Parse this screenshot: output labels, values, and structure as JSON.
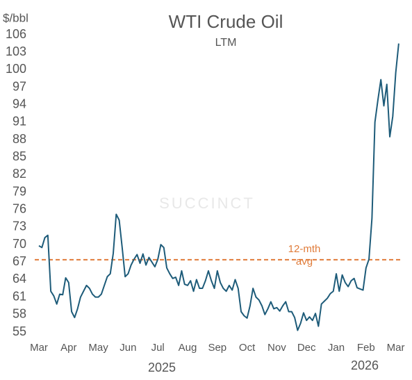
{
  "chart_data": {
    "type": "line",
    "title": "WTI Crude Oil",
    "subtitle": "LTM",
    "y_axis_label": "$/bbl",
    "watermark": "SUCCINCT",
    "year_labels": [
      "2025",
      "2026"
    ],
    "categories": [
      "Mar",
      null,
      null,
      null,
      null,
      null,
      null,
      null,
      null,
      null,
      "Apr",
      null,
      null,
      null,
      null,
      null,
      null,
      null,
      null,
      null,
      "May",
      null,
      null,
      null,
      null,
      null,
      null,
      null,
      null,
      null,
      "Jun",
      null,
      null,
      null,
      null,
      null,
      null,
      null,
      null,
      null,
      "Jul",
      null,
      null,
      null,
      null,
      null,
      null,
      null,
      null,
      null,
      "Aug",
      null,
      null,
      null,
      null,
      null,
      null,
      null,
      null,
      null,
      "Sep",
      null,
      null,
      null,
      null,
      null,
      null,
      null,
      null,
      null,
      "Oct",
      null,
      null,
      null,
      null,
      null,
      null,
      null,
      null,
      null,
      "Nov",
      null,
      null,
      null,
      null,
      null,
      null,
      null,
      null,
      null,
      "Dec",
      null,
      null,
      null,
      null,
      null,
      null,
      null,
      null,
      null,
      "Jan",
      null,
      null,
      null,
      null,
      null,
      null,
      null,
      null,
      null,
      "Feb",
      null,
      null,
      null,
      null,
      null,
      null,
      null,
      null,
      null,
      "Mar",
      null
    ],
    "series": [
      {
        "name": "WTI",
        "color": "#1d5b79",
        "values": [
          69.8,
          69.5,
          71.2,
          71.6,
          62.0,
          61.2,
          59.8,
          61.5,
          61.4,
          64.3,
          63.5,
          58.5,
          57.5,
          59.0,
          61.0,
          62.0,
          63.0,
          62.5,
          61.5,
          61.0,
          61.0,
          61.5,
          63.0,
          64.5,
          65.0,
          68.5,
          75.2,
          74.2,
          69.5,
          64.5,
          65.0,
          66.5,
          67.5,
          68.3,
          66.8,
          68.4,
          66.5,
          67.8,
          67.0,
          66.2,
          67.5,
          70.0,
          69.5,
          66.0,
          65.0,
          64.2,
          64.4,
          63.0,
          65.5,
          63.2,
          63.0,
          63.8,
          62.0,
          64.0,
          62.5,
          62.5,
          63.8,
          65.5,
          63.8,
          62.5,
          65.5,
          63.5,
          62.5,
          62.0,
          63.0,
          62.2,
          64.0,
          62.5,
          58.5,
          57.8,
          57.4,
          59.5,
          62.5,
          61.0,
          60.5,
          59.5,
          58.0,
          59.0,
          60.2,
          59.0,
          59.2,
          58.6,
          59.5,
          60.2,
          58.5,
          58.5,
          57.5,
          55.3,
          56.5,
          58.3,
          57.0,
          57.6,
          57.0,
          58.2,
          56.0,
          59.8,
          60.3,
          60.8,
          61.6,
          62.0,
          65.0,
          62.0,
          64.8,
          63.5,
          62.8,
          63.8,
          64.2,
          62.6,
          62.4,
          62.2,
          66.0,
          67.5,
          74.5,
          91.0,
          94.8,
          98.3,
          93.8,
          97.5,
          88.5,
          92.0,
          99.5,
          104.5
        ]
      }
    ],
    "reference_line": {
      "value": 67.4,
      "label": "12-mth avg",
      "color": "#e07b39",
      "dashed": true
    },
    "ylim": [
      55,
      106
    ],
    "yticks": [
      55,
      58,
      61,
      64,
      67,
      70,
      73,
      76,
      79,
      82,
      85,
      88,
      91,
      94,
      97,
      100,
      103,
      106
    ],
    "grid": false
  }
}
